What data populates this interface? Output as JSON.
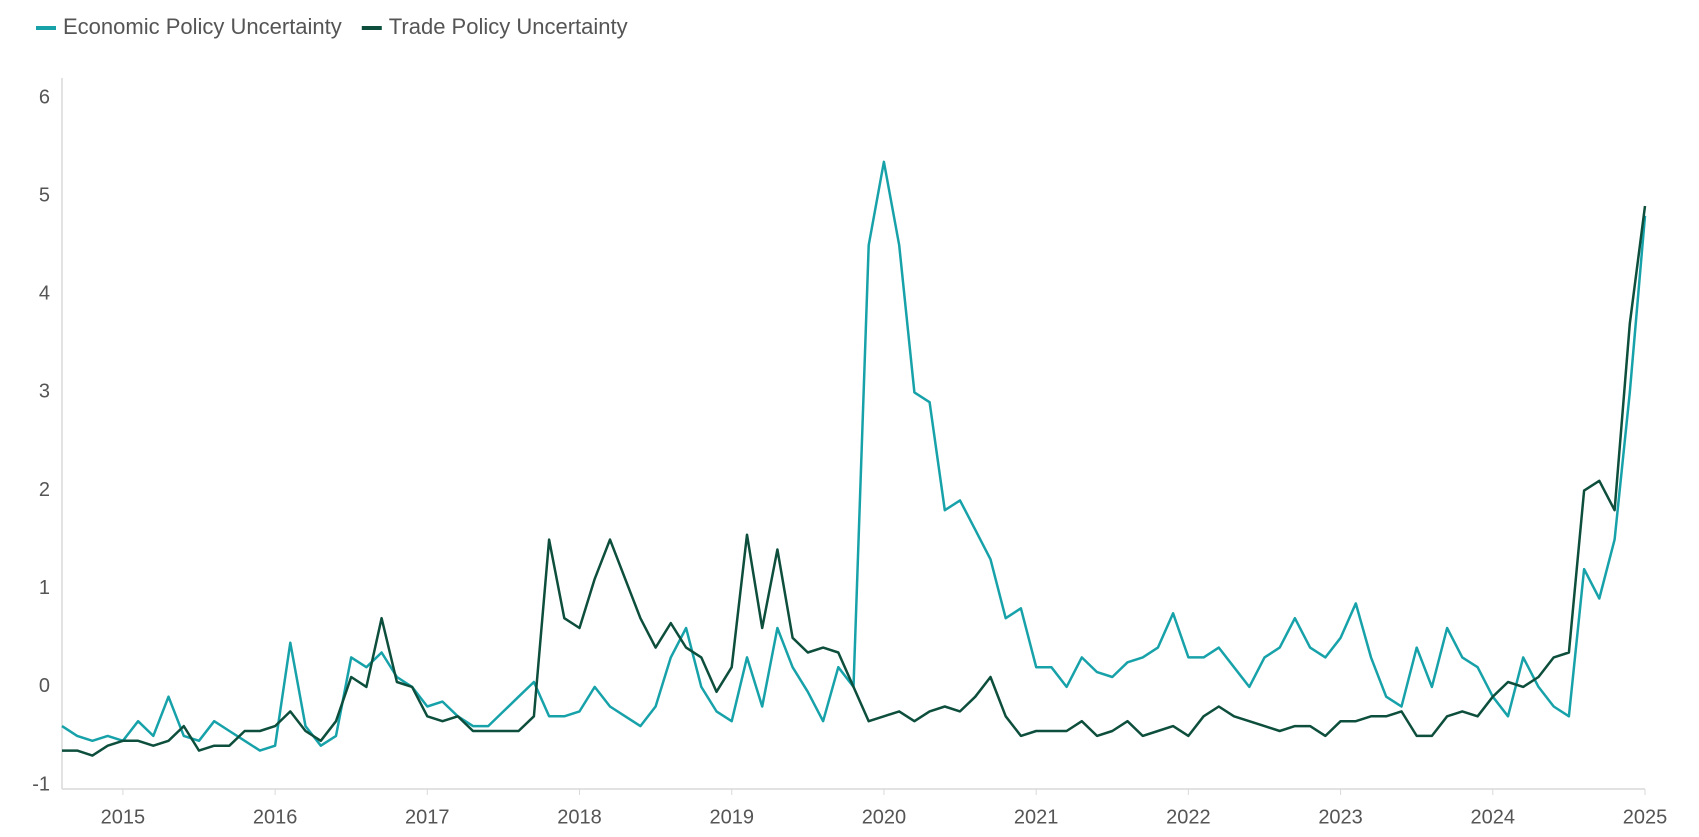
{
  "chart_data": {
    "type": "line",
    "x": [
      2014.6,
      2014.7,
      2014.8,
      2014.9,
      2015.0,
      2015.1,
      2015.2,
      2015.3,
      2015.4,
      2015.5,
      2015.6,
      2015.7,
      2015.8,
      2015.9,
      2016.0,
      2016.1,
      2016.2,
      2016.3,
      2016.4,
      2016.5,
      2016.6,
      2016.7,
      2016.8,
      2016.9,
      2017.0,
      2017.1,
      2017.2,
      2017.3,
      2017.4,
      2017.5,
      2017.6,
      2017.7,
      2017.8,
      2017.9,
      2018.0,
      2018.1,
      2018.2,
      2018.3,
      2018.4,
      2018.5,
      2018.6,
      2018.7,
      2018.8,
      2018.9,
      2019.0,
      2019.1,
      2019.2,
      2019.3,
      2019.4,
      2019.5,
      2019.6,
      2019.7,
      2019.8,
      2019.9,
      2020.0,
      2020.1,
      2020.2,
      2020.3,
      2020.4,
      2020.5,
      2020.6,
      2020.7,
      2020.8,
      2020.9,
      2021.0,
      2021.1,
      2021.2,
      2021.3,
      2021.4,
      2021.5,
      2021.6,
      2021.7,
      2021.8,
      2021.9,
      2022.0,
      2022.1,
      2022.2,
      2022.3,
      2022.4,
      2022.5,
      2022.6,
      2022.7,
      2022.8,
      2022.9,
      2023.0,
      2023.1,
      2023.2,
      2023.3,
      2023.4,
      2023.5,
      2023.6,
      2023.7,
      2023.8,
      2023.9,
      2024.0,
      2024.1,
      2024.2,
      2024.3,
      2024.4,
      2024.5,
      2024.6,
      2024.7,
      2024.8,
      2024.9,
      2025.0
    ],
    "series": [
      {
        "name": "Economic Policy Uncertainty",
        "color": "#17a2aa",
        "values": [
          -0.4,
          -0.5,
          -0.55,
          -0.5,
          -0.55,
          -0.35,
          -0.5,
          -0.1,
          -0.5,
          -0.55,
          -0.35,
          -0.45,
          -0.55,
          -0.65,
          -0.6,
          0.45,
          -0.4,
          -0.6,
          -0.5,
          0.3,
          0.2,
          0.35,
          0.1,
          0.0,
          -0.2,
          -0.15,
          -0.3,
          -0.4,
          -0.4,
          -0.25,
          -0.1,
          0.05,
          -0.3,
          -0.3,
          -0.25,
          0.0,
          -0.2,
          -0.3,
          -0.4,
          -0.2,
          0.3,
          0.6,
          0.0,
          -0.25,
          -0.35,
          0.3,
          -0.2,
          0.6,
          0.2,
          -0.05,
          -0.35,
          0.2,
          0.0,
          4.5,
          5.35,
          4.5,
          3.0,
          2.9,
          1.8,
          1.9,
          1.6,
          1.3,
          0.7,
          0.8,
          0.2,
          0.2,
          0.0,
          0.3,
          0.15,
          0.1,
          0.25,
          0.3,
          0.4,
          0.75,
          0.3,
          0.3,
          0.4,
          0.2,
          0.0,
          0.3,
          0.4,
          0.7,
          0.4,
          0.3,
          0.5,
          0.85,
          0.3,
          -0.1,
          -0.2,
          0.4,
          0.0,
          0.6,
          0.3,
          0.2,
          -0.1,
          -0.3,
          0.3,
          0.0,
          -0.2,
          -0.3,
          1.2,
          0.9,
          1.5,
          3.0,
          4.8
        ]
      },
      {
        "name": "Trade Policy Uncertainty",
        "color": "#0d4f3c",
        "values": [
          -0.65,
          -0.65,
          -0.7,
          -0.6,
          -0.55,
          -0.55,
          -0.6,
          -0.55,
          -0.4,
          -0.65,
          -0.6,
          -0.6,
          -0.45,
          -0.45,
          -0.4,
          -0.25,
          -0.45,
          -0.55,
          -0.35,
          0.1,
          0.0,
          0.7,
          0.05,
          0.0,
          -0.3,
          -0.35,
          -0.3,
          -0.45,
          -0.45,
          -0.45,
          -0.45,
          -0.3,
          1.5,
          0.7,
          0.6,
          1.1,
          1.5,
          1.1,
          0.7,
          0.4,
          0.65,
          0.4,
          0.3,
          -0.05,
          0.2,
          1.55,
          0.6,
          1.4,
          0.5,
          0.35,
          0.4,
          0.35,
          0.0,
          -0.35,
          -0.3,
          -0.25,
          -0.35,
          -0.25,
          -0.2,
          -0.25,
          -0.1,
          0.1,
          -0.3,
          -0.5,
          -0.45,
          -0.45,
          -0.45,
          -0.35,
          -0.5,
          -0.45,
          -0.35,
          -0.5,
          -0.45,
          -0.4,
          -0.5,
          -0.3,
          -0.2,
          -0.3,
          -0.35,
          -0.4,
          -0.45,
          -0.4,
          -0.4,
          -0.5,
          -0.35,
          -0.35,
          -0.3,
          -0.3,
          -0.25,
          -0.5,
          -0.5,
          -0.3,
          -0.25,
          -0.3,
          -0.1,
          0.05,
          0.0,
          0.1,
          0.3,
          0.35,
          2.0,
          2.1,
          1.8,
          3.7,
          4.9
        ]
      }
    ],
    "xlim": [
      2014.6,
      2025.0
    ],
    "xticks": [
      2015,
      2016,
      2017,
      2018,
      2019,
      2020,
      2021,
      2022,
      2023,
      2024,
      2025
    ],
    "ylim": [
      -1,
      6
    ],
    "yticks": [
      -1,
      0,
      1,
      2,
      3,
      4,
      5,
      6
    ],
    "grid": false,
    "legend": "top-left"
  }
}
